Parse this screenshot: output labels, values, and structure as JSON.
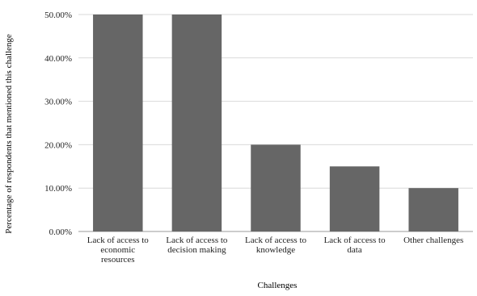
{
  "chart_data": {
    "type": "bar",
    "title": "",
    "xlabel": "Challenges",
    "ylabel": "Percentage of respondents that mentioned this challenge",
    "categories": [
      [
        "Lack of access to",
        "economic",
        "resources"
      ],
      [
        "Lack of access to",
        "decision making"
      ],
      [
        "Lack of access to",
        "knowledge"
      ],
      [
        "Lack of access to",
        "data"
      ],
      [
        "Other challenges"
      ]
    ],
    "values": [
      50.0,
      50.0,
      20.0,
      15.0,
      10.0
    ],
    "yticks": [
      "0.00%",
      "10.00%",
      "20.00%",
      "30.00%",
      "40.00%",
      "50.00%"
    ],
    "ylim": [
      0,
      50
    ],
    "grid": true,
    "colors": {
      "bar": "#666666",
      "grid": "#d9d9d9",
      "text": "#222222"
    }
  }
}
